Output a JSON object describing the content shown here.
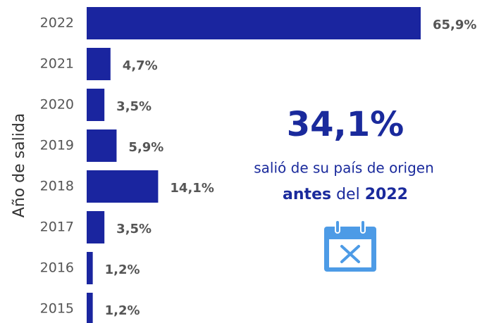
{
  "chart_data": {
    "type": "bar",
    "orientation": "horizontal",
    "y_axis_label": "Año de salida",
    "categories": [
      "2022",
      "2021",
      "2020",
      "2019",
      "2018",
      "2017",
      "2016",
      "2015"
    ],
    "values": [
      65.9,
      4.7,
      3.5,
      5.9,
      14.1,
      3.5,
      1.2,
      1.2
    ],
    "value_labels": [
      "65,9%",
      "4,7%",
      "3,5%",
      "5,9%",
      "14,1%",
      "3,5%",
      "1,2%",
      "1,2%"
    ],
    "color": "#1a259f",
    "annotation": {
      "headline": "34,1%",
      "line1": "salió de su país de origen",
      "line2_bold1": "antes",
      "line2_regular": "del",
      "line2_bold2": "2022"
    }
  }
}
